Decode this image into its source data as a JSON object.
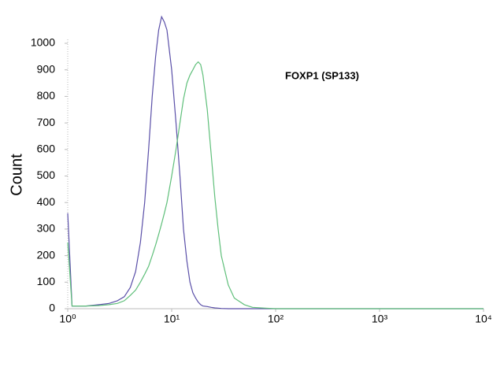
{
  "chart_data": {
    "type": "line",
    "y_label": "Count",
    "annotation": "FOXP1 (SP133)",
    "log_x": true,
    "xlim": [
      1,
      10000
    ],
    "xticks": [
      {
        "value": 1,
        "label": "10⁰"
      },
      {
        "value": 10,
        "label": "10¹"
      },
      {
        "value": 100,
        "label": "10²"
      },
      {
        "value": 1000,
        "label": "10³"
      },
      {
        "value": 10000,
        "label": "10⁴"
      }
    ],
    "ylim": [
      0,
      1000
    ],
    "yticks": [
      0,
      100,
      200,
      300,
      400,
      500,
      600,
      700,
      800,
      900,
      1000
    ],
    "x": [
      1,
      1.1,
      1.5,
      2,
      2.5,
      3,
      3.5,
      4,
      4.5,
      5,
      5.5,
      6,
      6.5,
      7,
      7.5,
      8,
      8.5,
      9,
      10,
      11,
      12,
      13,
      14,
      15,
      16,
      17,
      18,
      19,
      20,
      22,
      24,
      26,
      28,
      30,
      35,
      40,
      50,
      60,
      80,
      100,
      200,
      500,
      1000,
      10000
    ],
    "series": [
      {
        "color": "#5a4fa8",
        "values": [
          360,
          10,
          10,
          15,
          20,
          30,
          45,
          80,
          140,
          250,
          400,
          600,
          800,
          950,
          1050,
          1100,
          1080,
          1050,
          900,
          700,
          500,
          300,
          180,
          100,
          60,
          40,
          25,
          15,
          10,
          8,
          5,
          3,
          2,
          1,
          0,
          0,
          0,
          0,
          0,
          0,
          0,
          0,
          0,
          0
        ]
      },
      {
        "color": "#5fbf7a",
        "values": [
          250,
          10,
          10,
          12,
          15,
          20,
          30,
          50,
          70,
          100,
          130,
          160,
          200,
          240,
          280,
          320,
          360,
          400,
          500,
          600,
          700,
          790,
          850,
          880,
          900,
          920,
          930,
          920,
          880,
          750,
          580,
          420,
          300,
          200,
          90,
          40,
          15,
          5,
          2,
          0,
          0,
          0,
          0,
          0
        ]
      }
    ]
  }
}
